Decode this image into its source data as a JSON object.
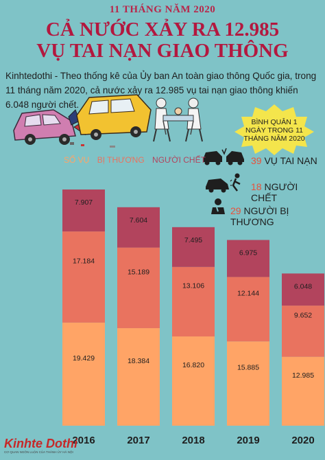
{
  "header": {
    "period": "11 THÁNG NĂM 2020",
    "title_line1": "CẢ NƯỚC XẢY RA 12.985",
    "title_line2": "VỤ TAI NẠN GIAO THÔNG"
  },
  "description": "Kinhtedothi - Theo thống kê của Ủy ban An toàn giao thông Quốc gia, trong 11 tháng năm 2020, cả nước xảy ra 12.985 vụ tai nạn giao thông khiến 6.048 người chết.",
  "badge": {
    "text_line1": "BÌNH QUÂN 1",
    "text_line2": "NGÀY TRONG 11",
    "text_line3": "THÁNG NĂM 2020"
  },
  "daily_stats": [
    {
      "value": "39",
      "label": "VỤ TAI NẠN",
      "icon": "car-crash-icon"
    },
    {
      "value": "18",
      "label": "NGƯỜI CHẾT",
      "icon": "car-pedestrian-icon"
    },
    {
      "value": "29",
      "label": "NGƯỜI BỊ THƯƠNG",
      "icon": "injured-person-icon"
    }
  ],
  "logo": {
    "name": "Kinhte Dothi",
    "tagline": "CƠ QUAN NGÔN LUẬN CỦA THÀNH ỦY HÀ NỘI"
  },
  "colors": {
    "background": "#7fc3c7",
    "title": "#b3183f",
    "cases": "#ffa466",
    "injured": "#e9735f",
    "deaths": "#b2445d"
  },
  "chart_data": {
    "type": "bar",
    "stacked": true,
    "categories": [
      "2016",
      "2017",
      "2018",
      "2019",
      "2020"
    ],
    "series": [
      {
        "name": "SỐ VỤ",
        "values": [
          "19.429",
          "18.384",
          "16.820",
          "15.885",
          "12.985"
        ]
      },
      {
        "name": "BỊ THƯƠNG",
        "values": [
          "17.184",
          "15.189",
          "13.106",
          "12.144",
          "9.652"
        ]
      },
      {
        "name": "NGƯỜI CHẾT",
        "values": [
          "7.907",
          "7.604",
          "7.495",
          "6.975",
          "6.048"
        ]
      }
    ],
    "legend_position": "top-left"
  }
}
